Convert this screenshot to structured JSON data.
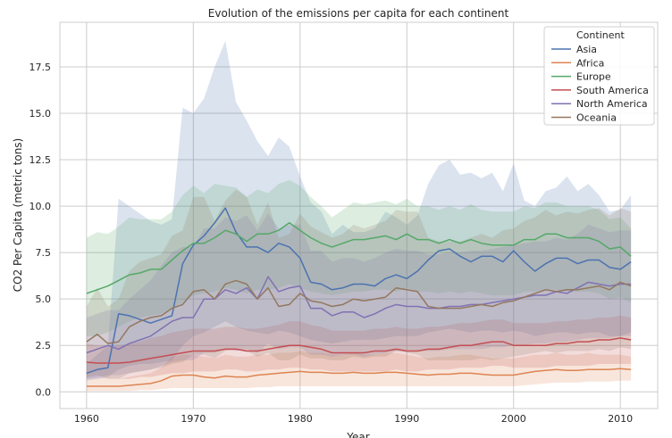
{
  "chart_data": {
    "type": "line",
    "title": "Evolution of the emissions per capita for each continent",
    "xlabel": "Year",
    "ylabel": "CO2 Per Capita (metric tons)",
    "xlim": [
      1957.5,
      2013.5
    ],
    "ylim": [
      -0.9,
      19.9
    ],
    "xticks": [
      1960,
      1970,
      1980,
      1990,
      2000,
      2010
    ],
    "xtick_labels": [
      "1960",
      "1970",
      "1980",
      "1990",
      "2000",
      "2010"
    ],
    "yticks": [
      0,
      2.5,
      5,
      7.5,
      10,
      12.5,
      15,
      17.5
    ],
    "ytick_labels": [
      "0.0",
      "2.5",
      "5.0",
      "7.5",
      "10.0",
      "12.5",
      "15.0",
      "17.5"
    ],
    "grid": true,
    "legend": {
      "title": "Continent",
      "location": "top-right"
    },
    "x": [
      1960,
      1961,
      1962,
      1963,
      1964,
      1965,
      1966,
      1967,
      1968,
      1969,
      1970,
      1971,
      1972,
      1973,
      1974,
      1975,
      1976,
      1977,
      1978,
      1979,
      1980,
      1981,
      1982,
      1983,
      1984,
      1985,
      1986,
      1987,
      1988,
      1989,
      1990,
      1991,
      1992,
      1993,
      1994,
      1995,
      1996,
      1997,
      1998,
      1999,
      2000,
      2001,
      2002,
      2003,
      2004,
      2005,
      2006,
      2007,
      2008,
      2009,
      2010,
      2011
    ],
    "series": [
      {
        "name": "Asia",
        "color": "#4c72b0",
        "values": [
          1.0,
          1.2,
          1.3,
          4.2,
          4.1,
          3.9,
          3.7,
          3.9,
          4.1,
          6.9,
          7.9,
          8.4,
          9.1,
          9.9,
          8.6,
          7.8,
          7.8,
          7.5,
          8.0,
          7.8,
          7.2,
          5.9,
          5.8,
          5.5,
          5.6,
          5.8,
          5.8,
          5.7,
          6.1,
          6.3,
          6.1,
          6.5,
          7.1,
          7.6,
          7.7,
          7.3,
          7.0,
          7.3,
          7.3,
          7.0,
          7.6,
          7.0,
          6.5,
          6.9,
          7.2,
          7.2,
          6.9,
          7.1,
          7.1,
          6.7,
          6.6,
          7.0
        ],
        "lower": [
          0.6,
          0.7,
          0.8,
          1.2,
          1.4,
          1.5,
          1.5,
          1.6,
          1.7,
          2.5,
          3.0,
          3.2,
          3.5,
          3.8,
          3.5,
          3.3,
          3.2,
          3.1,
          3.3,
          3.2,
          3.0,
          2.8,
          2.7,
          2.6,
          2.7,
          2.8,
          2.8,
          2.8,
          2.9,
          3.0,
          3.0,
          3.0,
          3.2,
          3.3,
          3.4,
          3.3,
          3.2,
          3.3,
          3.3,
          3.2,
          3.3,
          3.2,
          3.0,
          3.1,
          3.2,
          3.2,
          3.1,
          3.2,
          3.2,
          3.0,
          3.0,
          3.2
        ],
        "upper": [
          1.5,
          2.0,
          2.5,
          10.4,
          10.0,
          9.6,
          9.2,
          9.0,
          9.3,
          15.3,
          15.0,
          15.8,
          17.5,
          18.9,
          15.6,
          14.6,
          13.5,
          12.7,
          13.7,
          13.2,
          11.6,
          10.2,
          9.7,
          8.5,
          9.0,
          8.6,
          8.6,
          8.8,
          9.7,
          9.4,
          9.0,
          9.5,
          11.2,
          12.2,
          12.5,
          11.7,
          11.8,
          11.5,
          11.8,
          10.8,
          12.3,
          10.3,
          10.0,
          10.8,
          11.0,
          11.6,
          10.8,
          11.2,
          10.6,
          9.7,
          9.8,
          10.6
        ]
      },
      {
        "name": "Africa",
        "color": "#dd8452",
        "values": [
          0.3,
          0.3,
          0.3,
          0.3,
          0.35,
          0.4,
          0.45,
          0.6,
          0.85,
          0.9,
          0.9,
          0.8,
          0.75,
          0.85,
          0.8,
          0.8,
          0.9,
          0.95,
          1.0,
          1.05,
          1.1,
          1.05,
          1.05,
          1.0,
          1.0,
          1.05,
          1.0,
          1.0,
          1.05,
          1.05,
          1.0,
          0.95,
          0.9,
          0.95,
          0.95,
          1.0,
          1.0,
          0.95,
          0.9,
          0.9,
          0.9,
          1.0,
          1.1,
          1.15,
          1.2,
          1.15,
          1.15,
          1.2,
          1.2,
          1.2,
          1.25,
          1.2
        ],
        "lower": [
          0.05,
          0.05,
          0.05,
          0.05,
          0.05,
          0.1,
          0.1,
          0.15,
          0.2,
          0.2,
          0.2,
          0.2,
          0.2,
          0.2,
          0.2,
          0.2,
          0.25,
          0.25,
          0.3,
          0.3,
          0.3,
          0.3,
          0.3,
          0.3,
          0.3,
          0.3,
          0.3,
          0.3,
          0.3,
          0.3,
          0.3,
          0.3,
          0.3,
          0.3,
          0.3,
          0.3,
          0.3,
          0.3,
          0.3,
          0.3,
          0.3,
          0.35,
          0.4,
          0.45,
          0.5,
          0.5,
          0.5,
          0.55,
          0.55,
          0.55,
          0.6,
          0.6
        ],
        "upper": [
          0.7,
          0.7,
          0.7,
          0.7,
          0.8,
          0.9,
          1.0,
          1.3,
          1.9,
          2.0,
          2.0,
          1.9,
          1.8,
          2.0,
          1.9,
          1.9,
          2.0,
          2.0,
          2.1,
          2.1,
          2.2,
          2.1,
          2.1,
          2.0,
          2.0,
          2.1,
          2.0,
          2.0,
          2.1,
          2.1,
          2.0,
          1.9,
          1.8,
          1.9,
          1.9,
          2.0,
          2.0,
          1.9,
          1.8,
          1.8,
          1.8,
          1.9,
          2.0,
          2.0,
          2.1,
          2.0,
          2.0,
          2.1,
          2.0,
          2.0,
          2.0,
          1.9
        ]
      },
      {
        "name": "Europe",
        "color": "#55a868",
        "values": [
          5.3,
          5.5,
          5.7,
          6.0,
          6.3,
          6.4,
          6.6,
          6.6,
          7.1,
          7.6,
          8.0,
          8.0,
          8.3,
          8.7,
          8.5,
          8.1,
          8.5,
          8.5,
          8.7,
          9.1,
          8.7,
          8.3,
          8.0,
          7.8,
          8.0,
          8.2,
          8.2,
          8.3,
          8.4,
          8.2,
          8.5,
          8.2,
          8.2,
          8.0,
          8.2,
          8.0,
          8.2,
          8.0,
          7.9,
          7.9,
          7.9,
          8.2,
          8.2,
          8.5,
          8.5,
          8.3,
          8.3,
          8.3,
          8.1,
          7.7,
          7.8,
          7.3
        ],
        "lower": [
          3.0,
          3.0,
          3.2,
          3.5,
          3.8,
          4.0,
          4.1,
          4.2,
          4.5,
          4.8,
          5.2,
          5.3,
          5.4,
          5.6,
          5.5,
          5.3,
          5.5,
          5.5,
          5.6,
          5.8,
          5.6,
          5.4,
          5.3,
          5.2,
          5.3,
          5.4,
          5.4,
          5.5,
          5.5,
          5.4,
          5.6,
          5.4,
          5.4,
          5.3,
          5.4,
          5.3,
          5.4,
          5.3,
          5.2,
          5.2,
          5.2,
          5.4,
          5.4,
          5.5,
          5.5,
          5.4,
          5.4,
          5.4,
          5.3,
          5.0,
          5.1,
          4.8
        ],
        "upper": [
          8.3,
          8.6,
          8.5,
          8.9,
          9.4,
          9.3,
          9.3,
          9.3,
          9.7,
          10.6,
          11.1,
          10.7,
          11.2,
          11.1,
          11.0,
          10.5,
          10.9,
          10.7,
          11.2,
          11.4,
          11.1,
          10.5,
          10.0,
          9.4,
          9.8,
          10.2,
          10.1,
          10.2,
          10.3,
          10.1,
          10.4,
          10.0,
          10.0,
          9.8,
          10.0,
          9.8,
          10.1,
          9.8,
          9.7,
          9.7,
          9.7,
          10.0,
          9.9,
          10.2,
          10.2,
          10.0,
          10.0,
          10.0,
          9.8,
          9.3,
          9.4,
          8.8
        ]
      },
      {
        "name": "South America",
        "color": "#c44e52",
        "values": [
          1.6,
          1.55,
          1.55,
          1.55,
          1.6,
          1.7,
          1.8,
          1.9,
          2.0,
          2.1,
          2.2,
          2.2,
          2.2,
          2.3,
          2.3,
          2.2,
          2.2,
          2.3,
          2.4,
          2.5,
          2.5,
          2.4,
          2.3,
          2.1,
          2.1,
          2.1,
          2.1,
          2.2,
          2.2,
          2.3,
          2.2,
          2.2,
          2.3,
          2.3,
          2.4,
          2.5,
          2.5,
          2.6,
          2.7,
          2.7,
          2.5,
          2.5,
          2.5,
          2.5,
          2.6,
          2.6,
          2.7,
          2.7,
          2.8,
          2.8,
          2.9,
          2.8
        ],
        "lower": [
          0.7,
          0.7,
          0.7,
          0.7,
          0.7,
          0.8,
          0.8,
          0.9,
          1.0,
          1.0,
          1.1,
          1.1,
          1.1,
          1.2,
          1.2,
          1.1,
          1.1,
          1.2,
          1.2,
          1.3,
          1.3,
          1.2,
          1.2,
          1.1,
          1.1,
          1.1,
          1.1,
          1.1,
          1.1,
          1.2,
          1.1,
          1.1,
          1.2,
          1.2,
          1.2,
          1.3,
          1.3,
          1.3,
          1.4,
          1.4,
          1.3,
          1.3,
          1.3,
          1.3,
          1.4,
          1.4,
          1.4,
          1.4,
          1.5,
          1.5,
          1.5,
          1.5
        ],
        "upper": [
          2.6,
          2.5,
          2.5,
          2.5,
          2.6,
          2.7,
          2.9,
          3.0,
          3.2,
          3.3,
          3.4,
          3.4,
          3.4,
          3.5,
          3.5,
          3.4,
          3.4,
          3.5,
          3.6,
          3.8,
          3.8,
          3.6,
          3.5,
          3.3,
          3.3,
          3.3,
          3.3,
          3.4,
          3.4,
          3.5,
          3.4,
          3.4,
          3.5,
          3.5,
          3.6,
          3.7,
          3.7,
          3.8,
          3.9,
          3.9,
          3.7,
          3.7,
          3.7,
          3.7,
          3.8,
          3.8,
          3.9,
          3.9,
          4.0,
          4.0,
          4.1,
          4.0
        ]
      },
      {
        "name": "North America",
        "color": "#8172b3",
        "values": [
          2.1,
          2.3,
          2.5,
          2.3,
          2.6,
          2.8,
          3.0,
          3.4,
          3.8,
          4.0,
          4.0,
          5.0,
          5.0,
          5.5,
          5.3,
          5.6,
          5.0,
          6.2,
          5.4,
          5.6,
          5.7,
          4.5,
          4.5,
          4.1,
          4.3,
          4.3,
          4.0,
          4.2,
          4.5,
          4.7,
          4.6,
          4.6,
          4.5,
          4.5,
          4.6,
          4.6,
          4.7,
          4.7,
          4.8,
          4.9,
          5.0,
          5.1,
          5.2,
          5.2,
          5.4,
          5.3,
          5.6,
          5.9,
          5.8,
          5.7,
          5.8,
          5.8
        ],
        "lower": [
          0.7,
          0.8,
          0.9,
          0.9,
          1.0,
          1.1,
          1.2,
          1.4,
          1.6,
          1.7,
          1.7,
          2.1,
          2.1,
          2.3,
          2.2,
          2.3,
          2.1,
          2.6,
          2.3,
          2.4,
          2.4,
          2.0,
          2.0,
          1.9,
          2.0,
          2.0,
          1.9,
          2.0,
          2.1,
          2.2,
          2.2,
          2.2,
          2.2,
          2.2,
          2.3,
          2.3,
          2.3,
          2.3,
          2.4,
          2.4,
          2.5,
          2.5,
          2.6,
          2.6,
          2.7,
          2.7,
          2.8,
          2.9,
          2.9,
          2.9,
          3.0,
          3.0
        ],
        "upper": [
          4.0,
          4.2,
          4.4,
          4.4,
          5.0,
          5.5,
          6.0,
          6.8,
          7.5,
          7.8,
          7.8,
          8.8,
          8.8,
          9.4,
          9.2,
          9.5,
          8.7,
          9.6,
          8.8,
          9.0,
          9.0,
          7.6,
          7.6,
          7.0,
          7.2,
          7.2,
          7.0,
          7.2,
          7.5,
          7.7,
          7.6,
          7.6,
          7.4,
          7.4,
          7.5,
          7.5,
          7.6,
          7.6,
          7.7,
          7.8,
          7.9,
          8.0,
          8.1,
          8.1,
          8.3,
          8.2,
          8.5,
          9.0,
          8.8,
          8.6,
          8.7,
          8.7
        ]
      },
      {
        "name": "Oceania",
        "color": "#937860",
        "values": [
          2.7,
          3.1,
          2.6,
          2.7,
          3.5,
          3.8,
          4.0,
          4.1,
          4.5,
          4.7,
          5.4,
          5.5,
          5.0,
          5.8,
          6.0,
          5.8,
          5.0,
          5.6,
          4.6,
          4.7,
          5.3,
          4.9,
          4.8,
          4.6,
          4.7,
          5.0,
          4.9,
          5.0,
          5.1,
          5.6,
          5.5,
          5.4,
          4.6,
          4.5,
          4.5,
          4.5,
          4.6,
          4.7,
          4.6,
          4.8,
          4.9,
          5.1,
          5.3,
          5.5,
          5.4,
          5.5,
          5.5,
          5.6,
          5.7,
          5.5,
          5.9,
          5.7
        ],
        "lower": [
          0.8,
          0.9,
          0.7,
          0.7,
          1.0,
          1.1,
          1.2,
          1.3,
          1.5,
          1.6,
          2.0,
          2.0,
          1.8,
          2.2,
          2.3,
          2.2,
          1.9,
          2.1,
          1.7,
          1.7,
          2.0,
          1.8,
          1.8,
          1.7,
          1.7,
          1.9,
          1.8,
          1.9,
          1.9,
          2.2,
          2.1,
          2.0,
          1.7,
          1.7,
          1.7,
          1.7,
          1.7,
          1.8,
          1.7,
          1.8,
          1.9,
          2.0,
          2.1,
          2.2,
          2.1,
          2.2,
          2.2,
          2.2,
          2.3,
          2.2,
          2.4,
          2.3
        ],
        "upper": [
          4.6,
          5.6,
          4.6,
          5.0,
          6.5,
          7.0,
          7.2,
          7.4,
          8.4,
          8.7,
          10.5,
          10.5,
          9.2,
          10.3,
          10.9,
          10.5,
          9.0,
          10.2,
          8.3,
          8.5,
          9.6,
          8.9,
          8.6,
          8.3,
          8.5,
          9.0,
          8.8,
          9.0,
          9.2,
          9.8,
          9.7,
          9.7,
          8.3,
          8.1,
          8.1,
          8.1,
          8.3,
          8.5,
          8.3,
          8.7,
          8.8,
          9.2,
          9.4,
          9.8,
          9.5,
          9.7,
          9.6,
          9.8,
          9.9,
          9.5,
          9.9,
          9.7
        ]
      }
    ]
  }
}
